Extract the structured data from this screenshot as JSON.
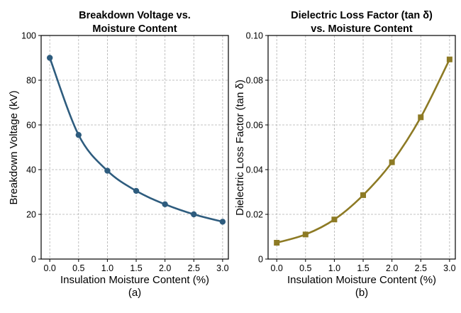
{
  "chart_data": [
    {
      "type": "line",
      "title_lines": [
        "Breakdown Voltage vs.",
        "Moisture Content"
      ],
      "xlabel": "Insulation Moisture Content (%)",
      "ylabel": "Breakdown Voltage (kV)",
      "caption": "(a)",
      "xlim": [
        -0.15,
        3.1
      ],
      "ylim": [
        0,
        100
      ],
      "xticks": [
        0.0,
        0.5,
        1.0,
        1.5,
        2.0,
        2.5,
        3.0
      ],
      "xtick_labels": [
        "0.0",
        "0.5",
        "1.0",
        "1.5",
        "2.0",
        "2.5",
        "3.0"
      ],
      "yticks": [
        0,
        20,
        40,
        60,
        80,
        100
      ],
      "ytick_labels": [
        "0",
        "20",
        "40",
        "60",
        "80",
        "100"
      ],
      "grid": true,
      "series": [
        {
          "color": "#2e5c7e",
          "marker": "circle",
          "x": [
            0.0,
            0.5,
            1.0,
            1.5,
            2.0,
            2.5,
            3.0
          ],
          "y": [
            90,
            55.5,
            39.5,
            30.5,
            24.5,
            20,
            16.7
          ]
        }
      ]
    },
    {
      "type": "line",
      "title_lines": [
        "Dielectric Loss Factor (tan δ)",
        "vs. Moisture Content"
      ],
      "xlabel": "Insulation Moisture Content (%)",
      "ylabel": "Dielectric Loss Factor (tan δ)",
      "caption": "(b)",
      "xlim": [
        -0.15,
        3.1
      ],
      "ylim": [
        0,
        0.1
      ],
      "xticks": [
        0.0,
        0.5,
        1.0,
        1.5,
        2.0,
        2.5,
        3.0
      ],
      "xtick_labels": [
        "0.0",
        "0.5",
        "1.0",
        "1.5",
        "2.0",
        "2.5",
        "3.0"
      ],
      "yticks": [
        0,
        0.02,
        0.04,
        0.06,
        0.08,
        0.1
      ],
      "ytick_labels": [
        "0",
        "0.02",
        "0.04",
        "0.06",
        "0.08",
        "0.10"
      ],
      "grid": true,
      "series": [
        {
          "color": "#8d7a24",
          "marker": "square",
          "x": [
            0.0,
            0.5,
            1.0,
            1.5,
            2.0,
            2.5,
            3.0
          ],
          "y": [
            0.0073,
            0.011,
            0.0177,
            0.0286,
            0.0433,
            0.0634,
            0.0893
          ]
        }
      ]
    }
  ]
}
